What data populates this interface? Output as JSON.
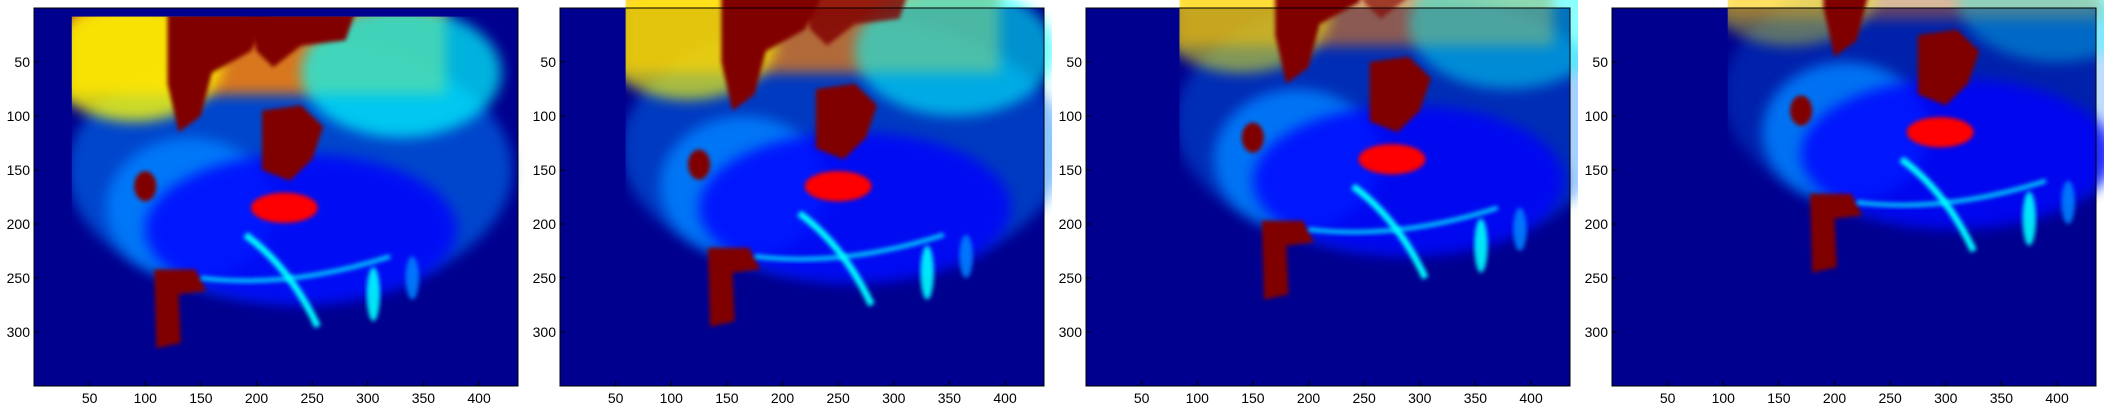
{
  "colormap": {
    "name": "jet",
    "background": "#00008f",
    "stops": [
      "#00008f",
      "#0000ff",
      "#0080ff",
      "#00ffff",
      "#80ff80",
      "#ffff00",
      "#ff8000",
      "#ff0000",
      "#800000"
    ]
  },
  "panels": [
    {
      "name": "frame-1",
      "xlim": [
        0,
        435
      ],
      "ylim": [
        0,
        350
      ],
      "xticks": [
        "50",
        "100",
        "150",
        "200",
        "250",
        "300",
        "350",
        "400"
      ],
      "yticks": [
        "50",
        "100",
        "150",
        "200",
        "250",
        "300"
      ],
      "shift": [
        0,
        0
      ]
    },
    {
      "name": "frame-2",
      "xlim": [
        0,
        435
      ],
      "ylim": [
        0,
        350
      ],
      "xticks": [
        "50",
        "100",
        "150",
        "200",
        "250",
        "300",
        "350",
        "400"
      ],
      "yticks": [
        "50",
        "100",
        "150",
        "200",
        "250",
        "300"
      ],
      "shift": [
        25,
        -20
      ]
    },
    {
      "name": "frame-3",
      "xlim": [
        0,
        435
      ],
      "ylim": [
        0,
        350
      ],
      "xticks": [
        "50",
        "100",
        "150",
        "200",
        "250",
        "300",
        "350",
        "400"
      ],
      "yticks": [
        "50",
        "100",
        "150",
        "200",
        "250",
        "300"
      ],
      "shift": [
        50,
        -45
      ]
    },
    {
      "name": "frame-4",
      "xlim": [
        0,
        435
      ],
      "ylim": [
        0,
        350
      ],
      "xticks": [
        "50",
        "100",
        "150",
        "200",
        "250",
        "300",
        "350",
        "400"
      ],
      "yticks": [
        "50",
        "100",
        "150",
        "200",
        "250",
        "300"
      ],
      "shift": [
        70,
        -70
      ]
    }
  ]
}
